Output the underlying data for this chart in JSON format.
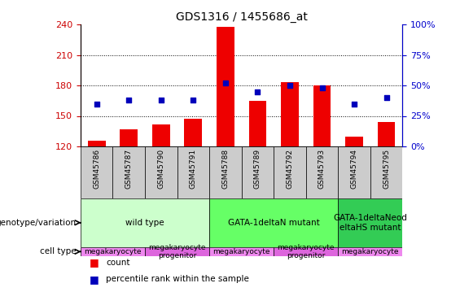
{
  "title": "GDS1316 / 1455686_at",
  "samples": [
    "GSM45786",
    "GSM45787",
    "GSM45790",
    "GSM45791",
    "GSM45788",
    "GSM45789",
    "GSM45792",
    "GSM45793",
    "GSM45794",
    "GSM45795"
  ],
  "bar_values": [
    126,
    137,
    142,
    147,
    238,
    165,
    183,
    180,
    130,
    144
  ],
  "dot_values": [
    35,
    38,
    38,
    38,
    52,
    45,
    50,
    48,
    35,
    40
  ],
  "ylim_left": [
    120,
    240
  ],
  "ylim_right": [
    0,
    100
  ],
  "yticks_left": [
    120,
    150,
    180,
    210,
    240
  ],
  "yticks_right": [
    0,
    25,
    50,
    75,
    100
  ],
  "bar_color": "#EE0000",
  "dot_color": "#0000BB",
  "background_color": "#FFFFFF",
  "tick_bg_color": "#CCCCCC",
  "genotype_groups": [
    {
      "label": "wild type",
      "start": 0,
      "end": 4,
      "color": "#CCFFCC"
    },
    {
      "label": "GATA-1deltaN mutant",
      "start": 4,
      "end": 8,
      "color": "#66FF66"
    },
    {
      "label": "GATA-1deltaNeod\neltaHS mutant",
      "start": 8,
      "end": 10,
      "color": "#33CC55"
    }
  ],
  "cell_type_groups": [
    {
      "label": "megakaryocyte",
      "start": 0,
      "end": 2,
      "color": "#EE88EE"
    },
    {
      "label": "megakaryocyte\nprogenitor",
      "start": 2,
      "end": 4,
      "color": "#DD66DD"
    },
    {
      "label": "megakaryocyte",
      "start": 4,
      "end": 6,
      "color": "#EE88EE"
    },
    {
      "label": "megakaryocyte\nprogenitor",
      "start": 6,
      "end": 8,
      "color": "#DD66DD"
    },
    {
      "label": "megakaryocyte",
      "start": 8,
      "end": 10,
      "color": "#EE88EE"
    }
  ],
  "left_axis_color": "#CC0000",
  "right_axis_color": "#0000CC",
  "legend_items": [
    {
      "color": "#EE0000",
      "label": "count"
    },
    {
      "color": "#0000BB",
      "label": "percentile rank within the sample"
    }
  ]
}
